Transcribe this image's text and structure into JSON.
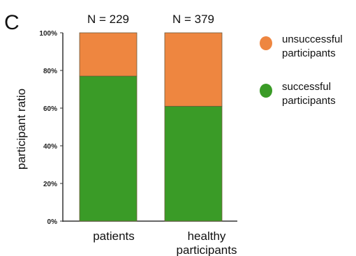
{
  "chart_data": {
    "type": "bar",
    "stacked": true,
    "panel_label": "C",
    "categories": [
      "patients",
      "healthy participants"
    ],
    "n_labels": [
      "N = 229",
      "N = 379"
    ],
    "ylabel": "participant ratio",
    "ylim": [
      0,
      100
    ],
    "yticks": [
      "0%",
      "20%",
      "40%",
      "60%",
      "80%",
      "100%"
    ],
    "series": [
      {
        "name": "successful participants",
        "color": "#3a9b27",
        "values": [
          77,
          61
        ]
      },
      {
        "name": "unsuccessful participants",
        "color": "#ee8640",
        "values": [
          23,
          39
        ]
      }
    ],
    "legend_position": "right",
    "legend": [
      {
        "lines": [
          "unsuccessful",
          "participants"
        ],
        "color": "#ee8640"
      },
      {
        "lines": [
          "successful",
          "participants"
        ],
        "color": "#3a9b27"
      }
    ],
    "category_lines": [
      [
        "patients"
      ],
      [
        "healthy",
        "participants"
      ]
    ]
  }
}
